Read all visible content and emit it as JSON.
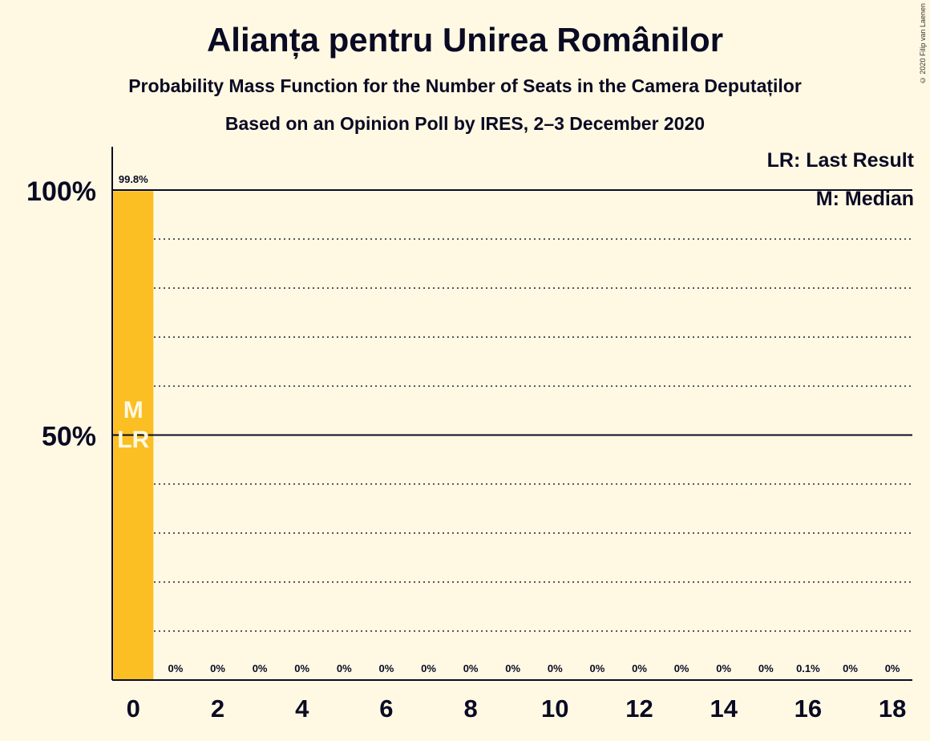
{
  "title": "Alianța pentru Unirea Românilor",
  "subtitle": "Probability Mass Function for the Number of Seats in the Camera Deputaților",
  "subtitle2": "Based on an Opinion Poll by IRES, 2–3 December 2020",
  "credit": "© 2020 Filip van Laenen",
  "legend": {
    "last_result": "LR: Last Result",
    "median": "M: Median"
  },
  "colors": {
    "background": "#fff9e3",
    "bar": "#fbbf24",
    "text": "#0a0a24",
    "bar_marker_text": "#fff9e3"
  },
  "chart_data": {
    "type": "bar",
    "categories": [
      0,
      1,
      2,
      3,
      4,
      5,
      6,
      7,
      8,
      9,
      10,
      11,
      12,
      13,
      14,
      15,
      16,
      17,
      18
    ],
    "values": [
      99.8,
      0,
      0,
      0,
      0,
      0,
      0,
      0,
      0,
      0,
      0,
      0,
      0,
      0,
      0,
      0,
      0.1,
      0,
      0
    ],
    "data_labels": [
      "99.8%",
      "0%",
      "0%",
      "0%",
      "0%",
      "0%",
      "0%",
      "0%",
      "0%",
      "0%",
      "0%",
      "0%",
      "0%",
      "0%",
      "0%",
      "0%",
      "0.1%",
      "0%",
      "0%"
    ],
    "x_tick_labels": [
      "0",
      "2",
      "4",
      "6",
      "8",
      "10",
      "12",
      "14",
      "16",
      "18"
    ],
    "x_ticks": [
      0,
      2,
      4,
      6,
      8,
      10,
      12,
      14,
      16,
      18
    ],
    "y_tick_labels": [
      "50%",
      "100%"
    ],
    "y_ticks": [
      50,
      100
    ],
    "ylim": [
      0,
      100
    ],
    "gridlines_dotted": [
      10,
      20,
      30,
      40,
      60,
      70,
      80,
      90
    ],
    "gridlines_solid": [
      50,
      100
    ],
    "markers": {
      "median_seat": 0,
      "median_label": "M",
      "last_result_seat": 0,
      "last_result_label": "LR"
    },
    "legend_position": "top-right"
  }
}
